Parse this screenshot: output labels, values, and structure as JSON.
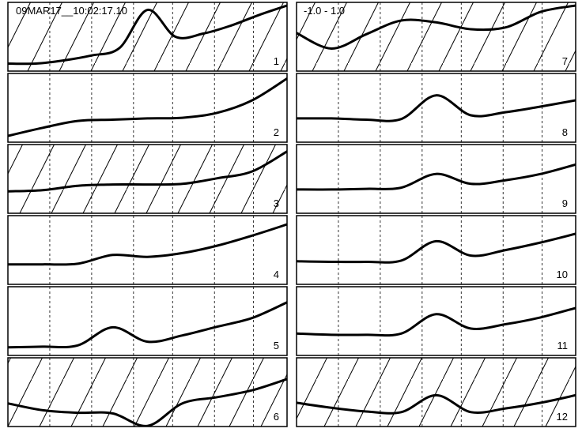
{
  "header": {
    "datetime": "09MAR17__10:02:17.10",
    "scale": "-1.0 - 1.0"
  },
  "chart_data": {
    "type": "line",
    "panels": [
      {
        "label": "1",
        "hatched": true,
        "values": [
          0.07,
          0.07,
          0.12,
          0.2,
          0.32,
          0.93,
          0.5,
          0.55,
          0.68,
          0.85,
          1.0
        ]
      },
      {
        "label": "2",
        "hatched": false,
        "values": [
          0.05,
          0.18,
          0.29,
          0.31,
          0.33,
          0.34,
          0.42,
          0.62,
          0.97
        ]
      },
      {
        "label": "3",
        "hatched": true,
        "values": [
          0.3,
          0.32,
          0.39,
          0.41,
          0.41,
          0.42,
          0.51,
          0.62,
          0.94
        ]
      },
      {
        "label": "4",
        "hatched": false,
        "values": [
          0.27,
          0.27,
          0.28,
          0.42,
          0.39,
          0.45,
          0.57,
          0.73,
          0.91
        ]
      },
      {
        "label": "5",
        "hatched": false,
        "values": [
          0.08,
          0.09,
          0.11,
          0.4,
          0.17,
          0.27,
          0.41,
          0.55,
          0.8
        ]
      },
      {
        "label": "6",
        "hatched": true,
        "values": [
          0.32,
          0.21,
          0.17,
          0.16,
          -0.04,
          0.32,
          0.42,
          0.53,
          0.71
        ]
      },
      {
        "label": "7",
        "hatched": true,
        "values": [
          0.56,
          0.31,
          0.54,
          0.76,
          0.73,
          0.62,
          0.65,
          0.9,
          1.0
        ]
      },
      {
        "label": "8",
        "hatched": false,
        "values": [
          0.33,
          0.33,
          0.31,
          0.32,
          0.7,
          0.38,
          0.43,
          0.52,
          0.62
        ]
      },
      {
        "label": "9",
        "hatched": false,
        "values": [
          0.33,
          0.33,
          0.34,
          0.36,
          0.58,
          0.42,
          0.48,
          0.58,
          0.73
        ]
      },
      {
        "label": "10",
        "hatched": false,
        "values": [
          0.32,
          0.31,
          0.31,
          0.33,
          0.64,
          0.41,
          0.5,
          0.62,
          0.76
        ]
      },
      {
        "label": "11",
        "hatched": false,
        "values": [
          0.3,
          0.28,
          0.28,
          0.3,
          0.61,
          0.38,
          0.45,
          0.56,
          0.71
        ]
      },
      {
        "label": "12",
        "hatched": true,
        "values": [
          0.33,
          0.25,
          0.19,
          0.18,
          0.45,
          0.18,
          0.24,
          0.33,
          0.45
        ]
      }
    ],
    "grid": true,
    "ylim": [
      -1.0,
      1.0
    ]
  }
}
